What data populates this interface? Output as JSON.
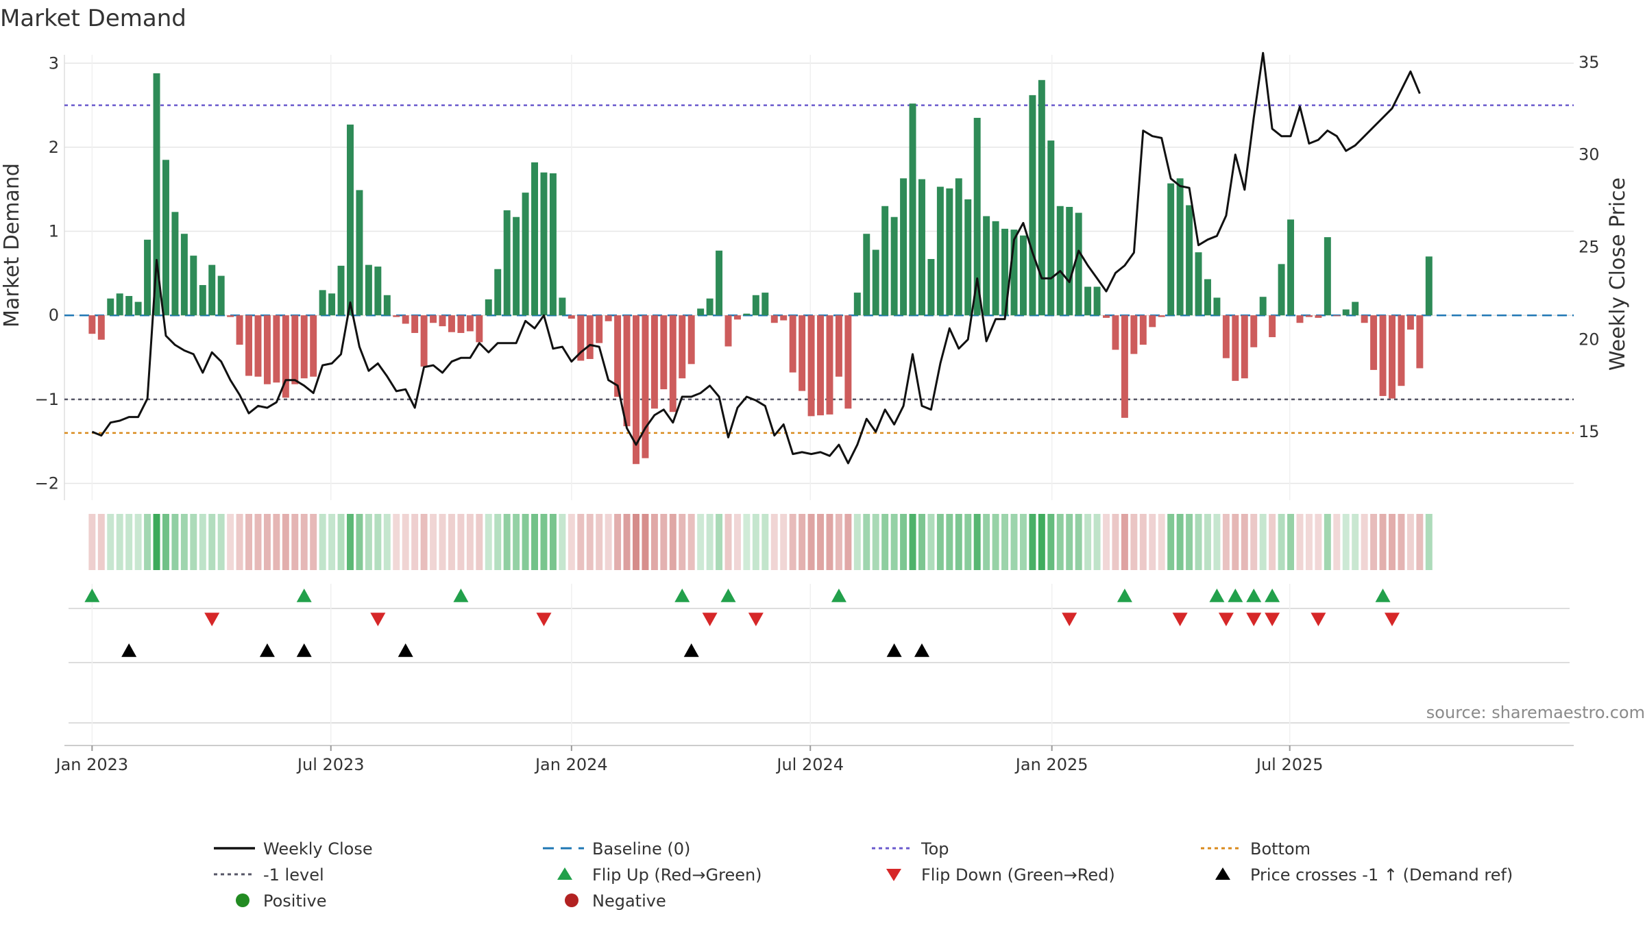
{
  "chart_data": {
    "type": "bar",
    "title": "Market Demand",
    "ylabel": "Market Demand",
    "y2label": "Weekly Close Price",
    "ylim": [
      -2.2,
      3.1
    ],
    "y2lim": [
      11.3,
      35.4
    ],
    "xlim": [
      -3,
      160.7
    ],
    "yticks": [
      3,
      2,
      1,
      0,
      -1,
      -2
    ],
    "ytick_labels": [
      "3",
      "2",
      "1",
      "0",
      "−1",
      "−2"
    ],
    "y2ticks": [
      35,
      30,
      25,
      20,
      15
    ],
    "y2tick_labels": [
      "35",
      "30",
      "25",
      "20",
      "15"
    ],
    "xticks": [
      {
        "week": 0,
        "label": "Jan 2023"
      },
      {
        "week": 25.9,
        "label": "Jul 2023"
      },
      {
        "week": 52,
        "label": "Jan 2024"
      },
      {
        "week": 77.9,
        "label": "Jul 2024"
      },
      {
        "week": 104.1,
        "label": "Jan 2025"
      },
      {
        "week": 129.9,
        "label": "Jul 2025"
      }
    ],
    "demand_values": [
      -0.22,
      -0.29,
      0.2,
      0.26,
      0.23,
      0.16,
      0.9,
      2.88,
      1.85,
      1.23,
      0.97,
      0.71,
      0.36,
      0.6,
      0.47,
      -0.02,
      -0.35,
      -0.72,
      -0.73,
      -0.82,
      -0.8,
      -0.98,
      -0.82,
      -0.75,
      -0.73,
      0.3,
      0.26,
      0.59,
      2.27,
      1.49,
      0.6,
      0.58,
      0.24,
      -0.02,
      -0.1,
      -0.21,
      -0.61,
      -0.09,
      -0.13,
      -0.2,
      -0.21,
      -0.19,
      -0.32,
      0.19,
      0.55,
      1.25,
      1.17,
      1.46,
      1.82,
      1.7,
      1.69,
      0.21,
      -0.04,
      -0.54,
      -0.52,
      -0.33,
      -0.07,
      -0.97,
      -1.32,
      -1.77,
      -1.7,
      -1.11,
      -0.88,
      -1.15,
      -0.75,
      -0.58,
      0.08,
      0.2,
      0.77,
      -0.37,
      -0.05,
      0.02,
      0.24,
      0.27,
      -0.09,
      -0.06,
      -0.68,
      -0.9,
      -1.2,
      -1.19,
      -1.18,
      -0.73,
      -1.11,
      0.27,
      0.97,
      0.78,
      1.3,
      1.17,
      1.63,
      2.52,
      1.62,
      0.67,
      1.53,
      1.51,
      1.63,
      1.38,
      2.35,
      1.18,
      1.12,
      1.03,
      1.02,
      0.95,
      2.62,
      2.8,
      2.08,
      1.3,
      1.29,
      1.22,
      0.34,
      0.34,
      -0.03,
      -0.41,
      -1.22,
      -0.46,
      -0.35,
      -0.14,
      -0.02,
      1.57,
      1.63,
      1.31,
      0.75,
      0.43,
      0.21,
      -0.51,
      -0.78,
      -0.75,
      -0.38,
      0.22,
      -0.26,
      0.61,
      1.14,
      -0.09,
      -0.02,
      -0.03,
      0.93,
      -0.01,
      0.07,
      0.16,
      -0.09,
      -0.65,
      -0.96,
      -0.99,
      -0.84,
      -0.17,
      -0.63,
      0.7
    ],
    "price_values": [
      15.0,
      14.8,
      15.5,
      15.6,
      15.8,
      15.8,
      16.8,
      24.3,
      20.2,
      19.7,
      19.4,
      19.2,
      18.2,
      19.3,
      18.8,
      17.8,
      17.0,
      16.0,
      16.4,
      16.3,
      16.6,
      17.8,
      17.8,
      17.5,
      17.1,
      18.6,
      18.7,
      19.2,
      22.0,
      19.6,
      18.3,
      18.7,
      18.0,
      17.2,
      17.3,
      16.3,
      18.5,
      18.6,
      18.2,
      18.8,
      19.0,
      19.0,
      19.8,
      19.3,
      19.8,
      19.8,
      19.8,
      21.0,
      20.6,
      21.3,
      19.5,
      19.6,
      18.8,
      19.3,
      19.7,
      19.6,
      17.8,
      17.5,
      15.2,
      14.3,
      15.2,
      15.9,
      16.2,
      15.5,
      16.9,
      16.9,
      17.1,
      17.5,
      16.9,
      14.7,
      16.3,
      16.9,
      16.7,
      16.4,
      14.8,
      15.4,
      13.8,
      13.9,
      13.8,
      13.9,
      13.7,
      14.3,
      13.3,
      14.3,
      15.7,
      15.0,
      16.2,
      15.4,
      16.4,
      19.2,
      16.4,
      16.2,
      18.7,
      20.6,
      19.5,
      20.0,
      23.3,
      19.9,
      21.1,
      21.1,
      25.4,
      26.3,
      24.7,
      23.3,
      23.3,
      23.7,
      23.1,
      24.8,
      24.0,
      23.3,
      22.6,
      23.6,
      24.0,
      24.7,
      31.3,
      31.0,
      30.9,
      28.7,
      28.3,
      28.2,
      25.1,
      25.4,
      25.6,
      26.7,
      30.0,
      28.1,
      32.0,
      35.5,
      31.4,
      31.0,
      31.0,
      32.6,
      30.6,
      30.8,
      31.3,
      31.0,
      30.2,
      30.5,
      31.0,
      31.5,
      32.0,
      32.5,
      33.5,
      34.5,
      33.3
    ],
    "top_level": 2.5,
    "bottom_level": -1.4,
    "minus_one_level": -1,
    "flip_up_weeks": [
      0,
      23,
      40,
      64,
      69,
      81,
      112,
      122,
      124,
      126,
      128,
      140
    ],
    "flip_down_weeks": [
      13,
      31,
      49,
      67,
      72,
      106,
      118,
      123,
      126,
      128,
      133,
      141
    ],
    "price_cross_weeks": [
      4,
      19,
      23,
      34,
      65,
      87,
      90
    ],
    "colors": {
      "positive_bar": "#2e8b57",
      "negative_bar": "#cd5c5c",
      "price_line": "#111111",
      "baseline": "#1f77b4",
      "top": "#6a5acd",
      "bottom": "#d98a1c",
      "minus_one": "#555566",
      "flip_up": "#22a04b",
      "flip_down": "#d62728",
      "cross": "#000000",
      "grid": "#e6e6e6",
      "positive_dot": "#228b22",
      "negative_dot": "#b22222"
    },
    "legend": [
      {
        "key": "weekly_close",
        "label": "Weekly Close",
        "symbol": "line"
      },
      {
        "key": "baseline",
        "label": "Baseline (0)",
        "symbol": "dash"
      },
      {
        "key": "top",
        "label": "Top",
        "symbol": "dotted"
      },
      {
        "key": "bottom",
        "label": "Bottom",
        "symbol": "dotted"
      },
      {
        "key": "minus_one",
        "label": "-1 level",
        "symbol": "dotted"
      },
      {
        "key": "flip_up",
        "label": "Flip Up (Red→Green)",
        "symbol": "tri-up"
      },
      {
        "key": "flip_down",
        "label": "Flip Down (Green→Red)",
        "symbol": "tri-down"
      },
      {
        "key": "price_cross",
        "label": "Price crosses -1 ↑ (Demand ref)",
        "symbol": "tri-up-black"
      },
      {
        "key": "positive",
        "label": "Positive",
        "symbol": "dot"
      },
      {
        "key": "negative",
        "label": "Negative",
        "symbol": "dot"
      }
    ],
    "source": "source: sharemaestro.com"
  }
}
